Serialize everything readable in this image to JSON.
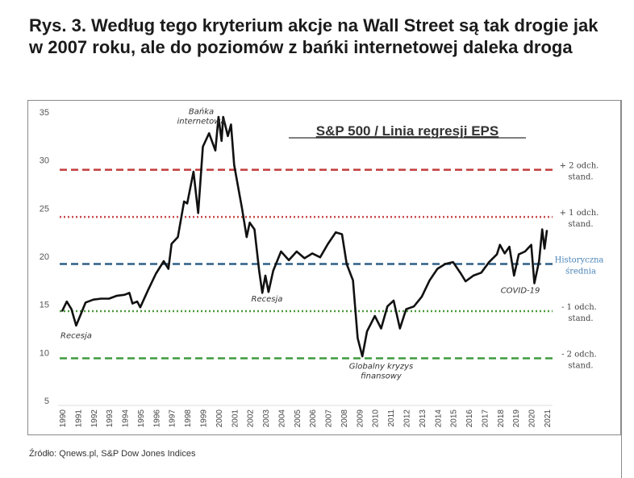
{
  "title": "Rys. 3. Według tego kryterium akcje na Wall Street są tak drogie jak w 2007 roku, ale do poziomów z bańki internetowej daleka droga",
  "source": "Źródło: Qnews.pl, S&P Dow Jones Indices",
  "chart_data": {
    "type": "line",
    "title": "S&P 500 / Linia regresji EPS",
    "xlabel": "",
    "ylabel": "",
    "xlim": [
      1990,
      2021
    ],
    "ylim": [
      5,
      35
    ],
    "yticks": [
      5,
      10,
      15,
      20,
      25,
      30,
      35
    ],
    "xticks": [
      "1990",
      "1991",
      "1992",
      "1993",
      "1994",
      "1995",
      "1996",
      "1997",
      "1998",
      "1999",
      "2000",
      "2001",
      "2002",
      "2003",
      "2004",
      "2005",
      "2006",
      "2007",
      "2008",
      "2009",
      "2010",
      "2011",
      "2012",
      "2013",
      "2014",
      "2015",
      "2016",
      "2017",
      "2018",
      "2019",
      "2020",
      "2021"
    ],
    "series": [
      {
        "name": "S&P 500 / Linia regresji EPS",
        "color": "#111111",
        "x": [
          1990,
          1990.3,
          1990.6,
          1990.9,
          1991.2,
          1991.5,
          1992,
          1992.5,
          1993,
          1993.5,
          1994,
          1994.3,
          1994.5,
          1994.8,
          1995,
          1995.5,
          1996,
          1996.5,
          1996.8,
          1997,
          1997.4,
          1997.8,
          1998,
          1998.4,
          1998.7,
          1999,
          1999.4,
          1999.8,
          2000,
          2000.2,
          2000.3,
          2000.6,
          2000.8,
          2001,
          2001.3,
          2001.5,
          2001.8,
          2002,
          2002.3,
          2002.6,
          2002.8,
          2003,
          2003.2,
          2003.5,
          2004,
          2004.5,
          2005,
          2005.5,
          2006,
          2006.5,
          2007,
          2007.5,
          2007.9,
          2008.2,
          2008.6,
          2008.9,
          2009.2,
          2009.5,
          2010,
          2010.4,
          2010.8,
          2011.2,
          2011.6,
          2012,
          2012.5,
          2013,
          2013.5,
          2014,
          2014.5,
          2015,
          2015.5,
          2015.8,
          2016.3,
          2016.8,
          2017.3,
          2017.8,
          2018,
          2018.3,
          2018.6,
          2018.9,
          2019.2,
          2019.6,
          2020,
          2020.2,
          2020.5,
          2020.7,
          2020.85,
          2021
        ],
        "values": [
          14.3,
          15.3,
          14.5,
          12.8,
          14.0,
          15.2,
          15.5,
          15.6,
          15.6,
          15.9,
          16.0,
          16.2,
          15.1,
          15.3,
          14.7,
          16.5,
          18.2,
          19.5,
          18.7,
          21.3,
          22.0,
          25.7,
          25.5,
          28.8,
          24.5,
          31.4,
          32.8,
          31.0,
          34.5,
          32.0,
          34.5,
          32.5,
          33.7,
          29.5,
          26.8,
          25.0,
          22.0,
          23.5,
          22.8,
          18.5,
          16.2,
          18.0,
          16.3,
          18.5,
          20.5,
          19.6,
          20.5,
          19.8,
          20.3,
          19.9,
          21.3,
          22.5,
          22.3,
          19.2,
          17.5,
          11.5,
          9.6,
          12.2,
          13.8,
          12.5,
          14.8,
          15.4,
          12.5,
          14.5,
          14.8,
          15.8,
          17.5,
          18.7,
          19.2,
          19.4,
          18.2,
          17.4,
          18.0,
          18.3,
          19.4,
          20.2,
          21.2,
          20.3,
          21.0,
          18.0,
          20.2,
          20.5,
          21.2,
          17.2,
          19.5,
          22.8,
          20.8,
          22.7
        ]
      }
    ],
    "reference_lines": [
      {
        "value": 29.0,
        "label1": "+ 2 odch.",
        "label2": "stand.",
        "color": "#c23b3b",
        "style": "dashed"
      },
      {
        "value": 24.1,
        "label1": "+ 1 odch.",
        "label2": "stand.",
        "color": "#c84a4a",
        "style": "dotted"
      },
      {
        "value": 19.2,
        "label1": "Historyczna",
        "label2": "średnia",
        "color": "#2f5f85",
        "labelColor": "#4a84b8",
        "style": "dashed"
      },
      {
        "value": 14.3,
        "label1": "- 1 odch.",
        "label2": "stand.",
        "color": "#4c9a3c",
        "style": "dotted"
      },
      {
        "value": 9.4,
        "label1": "- 2 odch.",
        "label2": "stand.",
        "color": "#3f9b3e",
        "style": "dashed"
      }
    ],
    "annotations": [
      {
        "lines": [
          "Bańka",
          "internetowa"
        ],
        "x": 1998.9,
        "y": 34.8
      },
      {
        "lines": [
          "Recesja"
        ],
        "x": 1990.9,
        "y": 11.5
      },
      {
        "lines": [
          "Recesja"
        ],
        "x": 2003.1,
        "y": 15.3
      },
      {
        "lines": [
          "Globalny kryzys",
          "finansowy"
        ],
        "x": 2010.4,
        "y": 8.3
      },
      {
        "lines": [
          "COVID-19"
        ],
        "x": 2019.3,
        "y": 16.2
      }
    ],
    "grid": false,
    "legend": "none"
  }
}
